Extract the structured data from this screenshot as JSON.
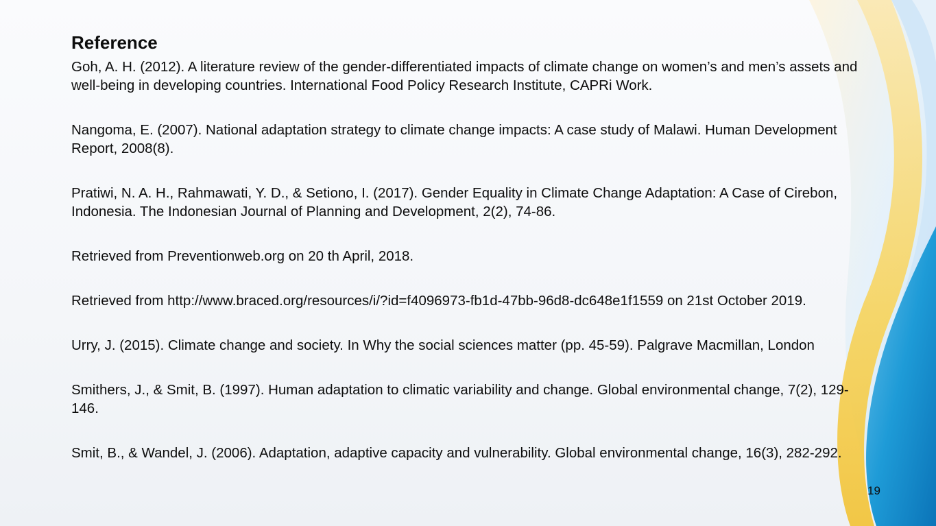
{
  "slide": {
    "title": "Reference",
    "references": [
      "Goh, A. H. (2012). A literature review of the gender-differentiated impacts of climate change on women’s and men’s assets and well-being in developing countries. International Food Policy Research Institute, CAPRi Work.",
      "Nangoma, E. (2007). National adaptation strategy to climate change impacts: A case study of Malawi. Human Development Report, 2008(8).",
      "Pratiwi, N. A. H., Rahmawati, Y. D., & Setiono, I. (2017). Gender Equality in Climate Change Adaptation: A Case of Cirebon, Indonesia. The Indonesian Journal of Planning and Development, 2(2), 74-86.",
      "Retrieved from Preventionweb.org on 20 th April, 2018.",
      "Retrieved from http://www.braced.org/resources/i/?id=f4096973-fb1d-47bb-96d8-dc648e1f1559 on 21st October 2019.",
      "Urry, J. (2015). Climate change and society. In Why the social sciences matter (pp. 45-59). Palgrave Macmillan, London",
      "Smithers, J., & Smit, B. (1997). Human adaptation to climatic variability and change. Global environmental change, 7(2), 129-146.",
      "Smit, B., & Wandel, J. (2006). Adaptation, adaptive capacity and vulnerability. Global environmental change, 16(3), 282-292."
    ],
    "page_number": "19"
  },
  "colors": {
    "text": "#0d0d0d",
    "wave_light_blue": "#cfe6f7",
    "wave_yellow": "#f7d35a",
    "wave_blue": "#1e9bd7",
    "wave_dark_blue": "#0b74b8"
  }
}
